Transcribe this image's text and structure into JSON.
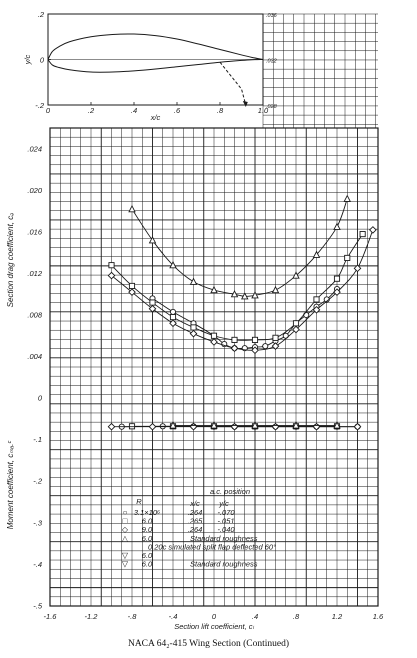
{
  "caption": "NACA 64₂-415 Wing Section (Continued)",
  "chart_data": [
    {
      "type": "line",
      "xlabel": "x/c",
      "ylabel": "y/c",
      "xticks": [
        "0",
        ".2",
        ".4",
        ".6",
        ".8",
        "1.0"
      ],
      "yticks": [
        ".2",
        "0",
        "-.2"
      ],
      "right_ticks": [
        ".036",
        ".032",
        ".028"
      ],
      "xlim": [
        0,
        1.0
      ],
      "ylim": [
        -0.2,
        0.2
      ],
      "upper_surface": {
        "x": [
          0,
          0.02,
          0.05,
          0.1,
          0.2,
          0.3,
          0.4,
          0.5,
          0.6,
          0.7,
          0.8,
          0.9,
          0.95,
          1.0
        ],
        "y": [
          0,
          0.035,
          0.056,
          0.078,
          0.1,
          0.11,
          0.112,
          0.105,
          0.09,
          0.068,
          0.044,
          0.02,
          0.009,
          0
        ]
      },
      "lower_surface": {
        "x": [
          0,
          0.02,
          0.05,
          0.1,
          0.2,
          0.3,
          0.4,
          0.5,
          0.6,
          0.7,
          0.8,
          0.9,
          0.95,
          1.0
        ],
        "y": [
          0,
          -0.024,
          -0.035,
          -0.045,
          -0.055,
          -0.055,
          -0.05,
          -0.042,
          -0.032,
          -0.022,
          -0.012,
          -0.004,
          -0.001,
          0
        ]
      },
      "flap": {
        "x": [
          0.8,
          0.9,
          0.92
        ],
        "y": [
          -0.012,
          -0.13,
          -0.2
        ]
      }
    },
    {
      "type": "scatter",
      "xlabel": "Section lift coefficient, cₗ",
      "ylabel_drag": "Section drag coefficient, cₔ",
      "ylabel_moment": "Moment coefficient, cₘₐ.ᶜ",
      "xticks": [
        "-1.6",
        "-1.2",
        "-.8",
        "-.4",
        "0",
        ".4",
        ".8",
        "1.2",
        "1.6"
      ],
      "yticks_drag": [
        ".024",
        ".020",
        ".016",
        ".012",
        ".008",
        ".004",
        "0"
      ],
      "yticks_moment": [
        "-.1",
        "-.2",
        "-.3",
        "-.4",
        "-.5"
      ],
      "xlim": [
        -1.6,
        1.6
      ],
      "drag_ylim": [
        0,
        0.026
      ],
      "moment_ylim": [
        -0.5,
        0
      ],
      "series": [
        {
          "marker": "circle",
          "drag": [
            [
              -0.6,
              0.0096
            ],
            [
              -0.4,
              0.0083
            ],
            [
              -0.2,
              0.0072
            ],
            [
              0,
              0.006
            ],
            [
              0.1,
              0.0052
            ],
            [
              0.2,
              0.0048
            ],
            [
              0.3,
              0.0048
            ],
            [
              0.4,
              0.0049
            ],
            [
              0.5,
              0.005
            ],
            [
              0.6,
              0.0055
            ],
            [
              0.7,
              0.006
            ],
            [
              0.8,
              0.0072
            ],
            [
              0.9,
              0.008
            ],
            [
              1.0,
              0.0088
            ],
            [
              1.1,
              0.0095
            ],
            [
              1.2,
              0.0105
            ]
          ],
          "moment": [
            [
              -0.9,
              -0.069
            ],
            [
              -0.5,
              -0.068
            ],
            [
              -0.2,
              -0.068
            ],
            [
              0,
              -0.069
            ],
            [
              0.2,
              -0.069
            ],
            [
              0.4,
              -0.069
            ],
            [
              0.6,
              -0.069
            ],
            [
              0.8,
              -0.069
            ],
            [
              1.0,
              -0.069
            ],
            [
              1.2,
              -0.069
            ],
            [
              1.4,
              -0.069
            ]
          ]
        },
        {
          "marker": "square",
          "drag": [
            [
              -1.0,
              0.0128
            ],
            [
              -0.8,
              0.0108
            ],
            [
              -0.6,
              0.0092
            ],
            [
              -0.4,
              0.0078
            ],
            [
              -0.2,
              0.0068
            ],
            [
              0,
              0.006
            ],
            [
              0.2,
              0.0056
            ],
            [
              0.4,
              0.0056
            ],
            [
              0.6,
              0.0058
            ],
            [
              0.8,
              0.0072
            ],
            [
              1.0,
              0.0095
            ],
            [
              1.2,
              0.0115
            ],
            [
              1.3,
              0.0135
            ],
            [
              1.45,
              0.0158
            ]
          ],
          "moment": [
            [
              -0.8,
              -0.068
            ],
            [
              -0.4,
              -0.068
            ],
            [
              0,
              -0.068
            ],
            [
              0.4,
              -0.068
            ],
            [
              0.8,
              -0.068
            ],
            [
              1.2,
              -0.068
            ]
          ]
        },
        {
          "marker": "diamond",
          "drag": [
            [
              -1.0,
              0.0118
            ],
            [
              -0.8,
              0.0102
            ],
            [
              -0.6,
              0.0086
            ],
            [
              -0.4,
              0.0072
            ],
            [
              -0.2,
              0.0062
            ],
            [
              0,
              0.0054
            ],
            [
              0.2,
              0.0048
            ],
            [
              0.4,
              0.0046
            ],
            [
              0.6,
              0.005
            ],
            [
              0.8,
              0.0066
            ],
            [
              1.0,
              0.0085
            ],
            [
              1.2,
              0.0102
            ],
            [
              1.4,
              0.0125
            ],
            [
              1.55,
              0.0162
            ]
          ],
          "moment": [
            [
              -1.0,
              -0.069
            ],
            [
              -0.6,
              -0.069
            ],
            [
              -0.2,
              -0.069
            ],
            [
              0.2,
              -0.069
            ],
            [
              0.6,
              -0.069
            ],
            [
              1.0,
              -0.069
            ],
            [
              1.4,
              -0.069
            ]
          ]
        },
        {
          "marker": "triangle",
          "drag": [
            [
              -0.8,
              0.0182
            ],
            [
              -0.6,
              0.0152
            ],
            [
              -0.4,
              0.0128
            ],
            [
              -0.2,
              0.0112
            ],
            [
              0,
              0.0104
            ],
            [
              0.2,
              0.01
            ],
            [
              0.3,
              0.0098
            ],
            [
              0.4,
              0.0099
            ],
            [
              0.6,
              0.0104
            ],
            [
              0.8,
              0.0118
            ],
            [
              1.0,
              0.0138
            ],
            [
              1.2,
              0.0165
            ],
            [
              1.3,
              0.0192
            ]
          ],
          "moment": [
            [
              -0.4,
              -0.066
            ],
            [
              0,
              -0.066
            ],
            [
              0.4,
              -0.066
            ],
            [
              0.8,
              -0.066
            ],
            [
              1.2,
              -0.066
            ]
          ]
        }
      ],
      "legend": {
        "header": "a.c. position",
        "col_R": "R",
        "col_xc": "x/c",
        "col_yc": "y/c",
        "rows": [
          {
            "symbol": "○",
            "R": "3.1×10⁶",
            "xc": ".264",
            "yc": "-.070"
          },
          {
            "symbol": "□",
            "R": "6.0",
            "xc": ".265",
            "yc": "-.051"
          },
          {
            "symbol": "◇",
            "R": "9.0",
            "xc": ".264",
            "yc": "-.040"
          },
          {
            "symbol": "△",
            "R": "6.0",
            "note": "Standard roughness"
          },
          {
            "symbol": "",
            "R": "",
            "note": "0.20c simulated split flap deflected 60°"
          },
          {
            "symbol": "▽",
            "R": "6.0"
          },
          {
            "symbol": "▽",
            "R": "6.0",
            "note": "Standard roughness"
          }
        ]
      }
    }
  ]
}
